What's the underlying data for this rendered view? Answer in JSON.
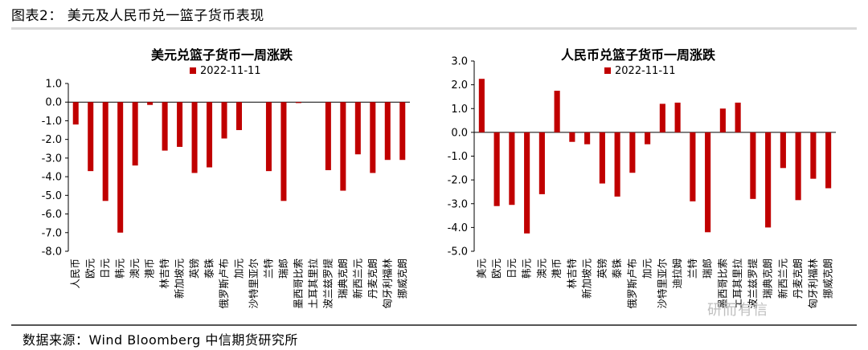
{
  "header": {
    "title": "图表2： 美元及人民币兑一篮子货币表现"
  },
  "footer": {
    "source": "数据来源：Wind  Bloomberg  中信期货研究所"
  },
  "watermark": "研而有信",
  "chart_data": [
    {
      "type": "bar",
      "title": "美元兑篮子货币一周涨跌",
      "legend": [
        "2022-11-11"
      ],
      "bar_color": "#c00000",
      "ylim": [
        -8.0,
        1.0
      ],
      "yticks": [
        "1.0",
        "0.0",
        "-1.0",
        "-2.0",
        "-3.0",
        "-4.0",
        "-5.0",
        "-6.0",
        "-7.0",
        "-8.0"
      ],
      "categories": [
        "人民币",
        "欧元",
        "日元",
        "韩元",
        "澳元",
        "港币",
        "林吉特",
        "新加坡元",
        "英镑",
        "泰铢",
        "俄罗斯卢布",
        "加元",
        "沙特里亚尔",
        "兰特",
        "瑞郎",
        "墨西哥比索",
        "土耳其里拉",
        "波兰兹罗提",
        "瑞典克朗",
        "新西兰元",
        "丹麦克朗",
        "匈牙利福林",
        "挪威克朗"
      ],
      "series": [
        {
          "name": "2022-11-11",
          "values": [
            -1.2,
            -3.7,
            -5.3,
            -7.0,
            -3.4,
            -0.15,
            -2.6,
            -2.4,
            -3.8,
            -3.5,
            -1.95,
            -1.5,
            0.0,
            -3.7,
            -5.3,
            -0.05,
            0.0,
            -3.65,
            -4.75,
            -2.8,
            -3.8,
            -3.1,
            -3.1
          ]
        }
      ]
    },
    {
      "type": "bar",
      "title": "人民币兑篮子货币一周涨跌",
      "legend": [
        "2022-11-11"
      ],
      "bar_color": "#c00000",
      "ylim": [
        -5.0,
        3.0
      ],
      "yticks": [
        "3.0",
        "2.0",
        "1.0",
        "0.0",
        "-1.0",
        "-2.0",
        "-3.0",
        "-4.0",
        "-5.0"
      ],
      "categories": [
        "美元",
        "欧元",
        "日元",
        "韩元",
        "澳元",
        "港币",
        "林吉特",
        "新加坡元",
        "英镑",
        "泰铢",
        "俄罗斯卢布",
        "加元",
        "沙特里亚尔",
        "迪拉姆",
        "兰特",
        "瑞郎",
        "墨西哥比索",
        "土耳其里拉",
        "波兰兹罗提",
        "瑞典克朗",
        "新西兰元",
        "丹麦克朗",
        "匈牙利福林",
        "挪威克朗"
      ],
      "series": [
        {
          "name": "2022-11-11",
          "values": [
            2.25,
            -3.1,
            -3.05,
            -4.25,
            -2.6,
            1.75,
            -0.4,
            -0.5,
            -2.15,
            -2.7,
            -1.7,
            -0.5,
            1.2,
            1.25,
            -2.9,
            -4.2,
            1.0,
            1.25,
            -2.8,
            -4.0,
            -1.5,
            -2.85,
            -1.95,
            -2.35
          ]
        }
      ]
    }
  ]
}
